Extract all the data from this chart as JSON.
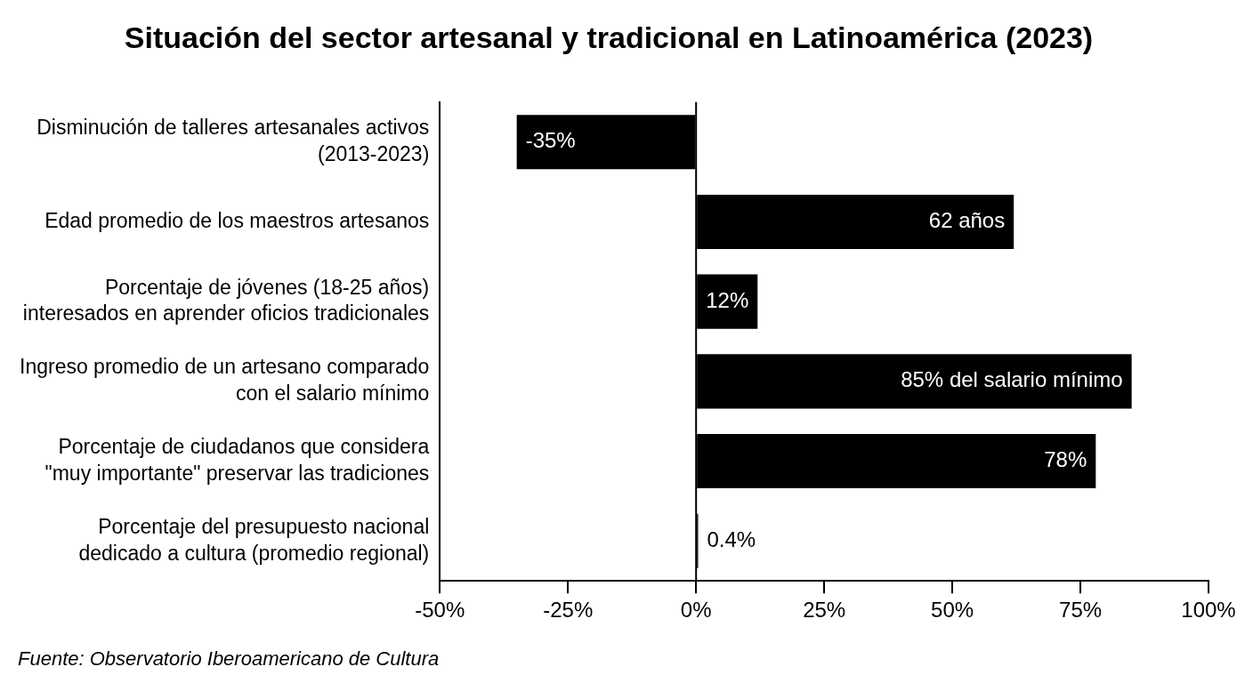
{
  "chart_data": {
    "type": "bar",
    "orientation": "horizontal",
    "title": "Situación del sector artesanal y tradicional en Latinoamérica (2023)",
    "categories": [
      "Disminución de talleres artesanales activos (2013-2023)",
      "Edad promedio de los maestros artesanos",
      "Porcentaje de jóvenes (18-25 años) interesados en aprender oficios tradicionales",
      "Ingreso promedio de un artesano comparado con el salario mínimo",
      "Porcentaje de ciudadanos que considera \"muy importante\" preservar las tradiciones",
      "Porcentaje del presupuesto nacional dedicado a cultura (promedio regional)"
    ],
    "values": [
      -35,
      62,
      12,
      85,
      78,
      0.4
    ],
    "value_labels": [
      "-35%",
      "62 años",
      "12%",
      "85% del salario mínimo",
      "78%",
      "0.4%"
    ],
    "color": "#000000",
    "xlim": [
      -50,
      100
    ],
    "xticks": [
      {
        "value": -50,
        "label": "-50%"
      },
      {
        "value": -25,
        "label": "-25%"
      },
      {
        "value": 0,
        "label": "0%"
      },
      {
        "value": 25,
        "label": "25%"
      },
      {
        "value": 50,
        "label": "50%"
      },
      {
        "value": 75,
        "label": "75%"
      },
      {
        "value": 100,
        "label": "100%"
      }
    ],
    "grid": false,
    "legend": false,
    "ref_lines": [
      {
        "axis": "x",
        "value": 0,
        "color": "#000000"
      }
    ],
    "annotations": [
      "Fuente: Observatorio Iberoamericano de Cultura"
    ]
  }
}
